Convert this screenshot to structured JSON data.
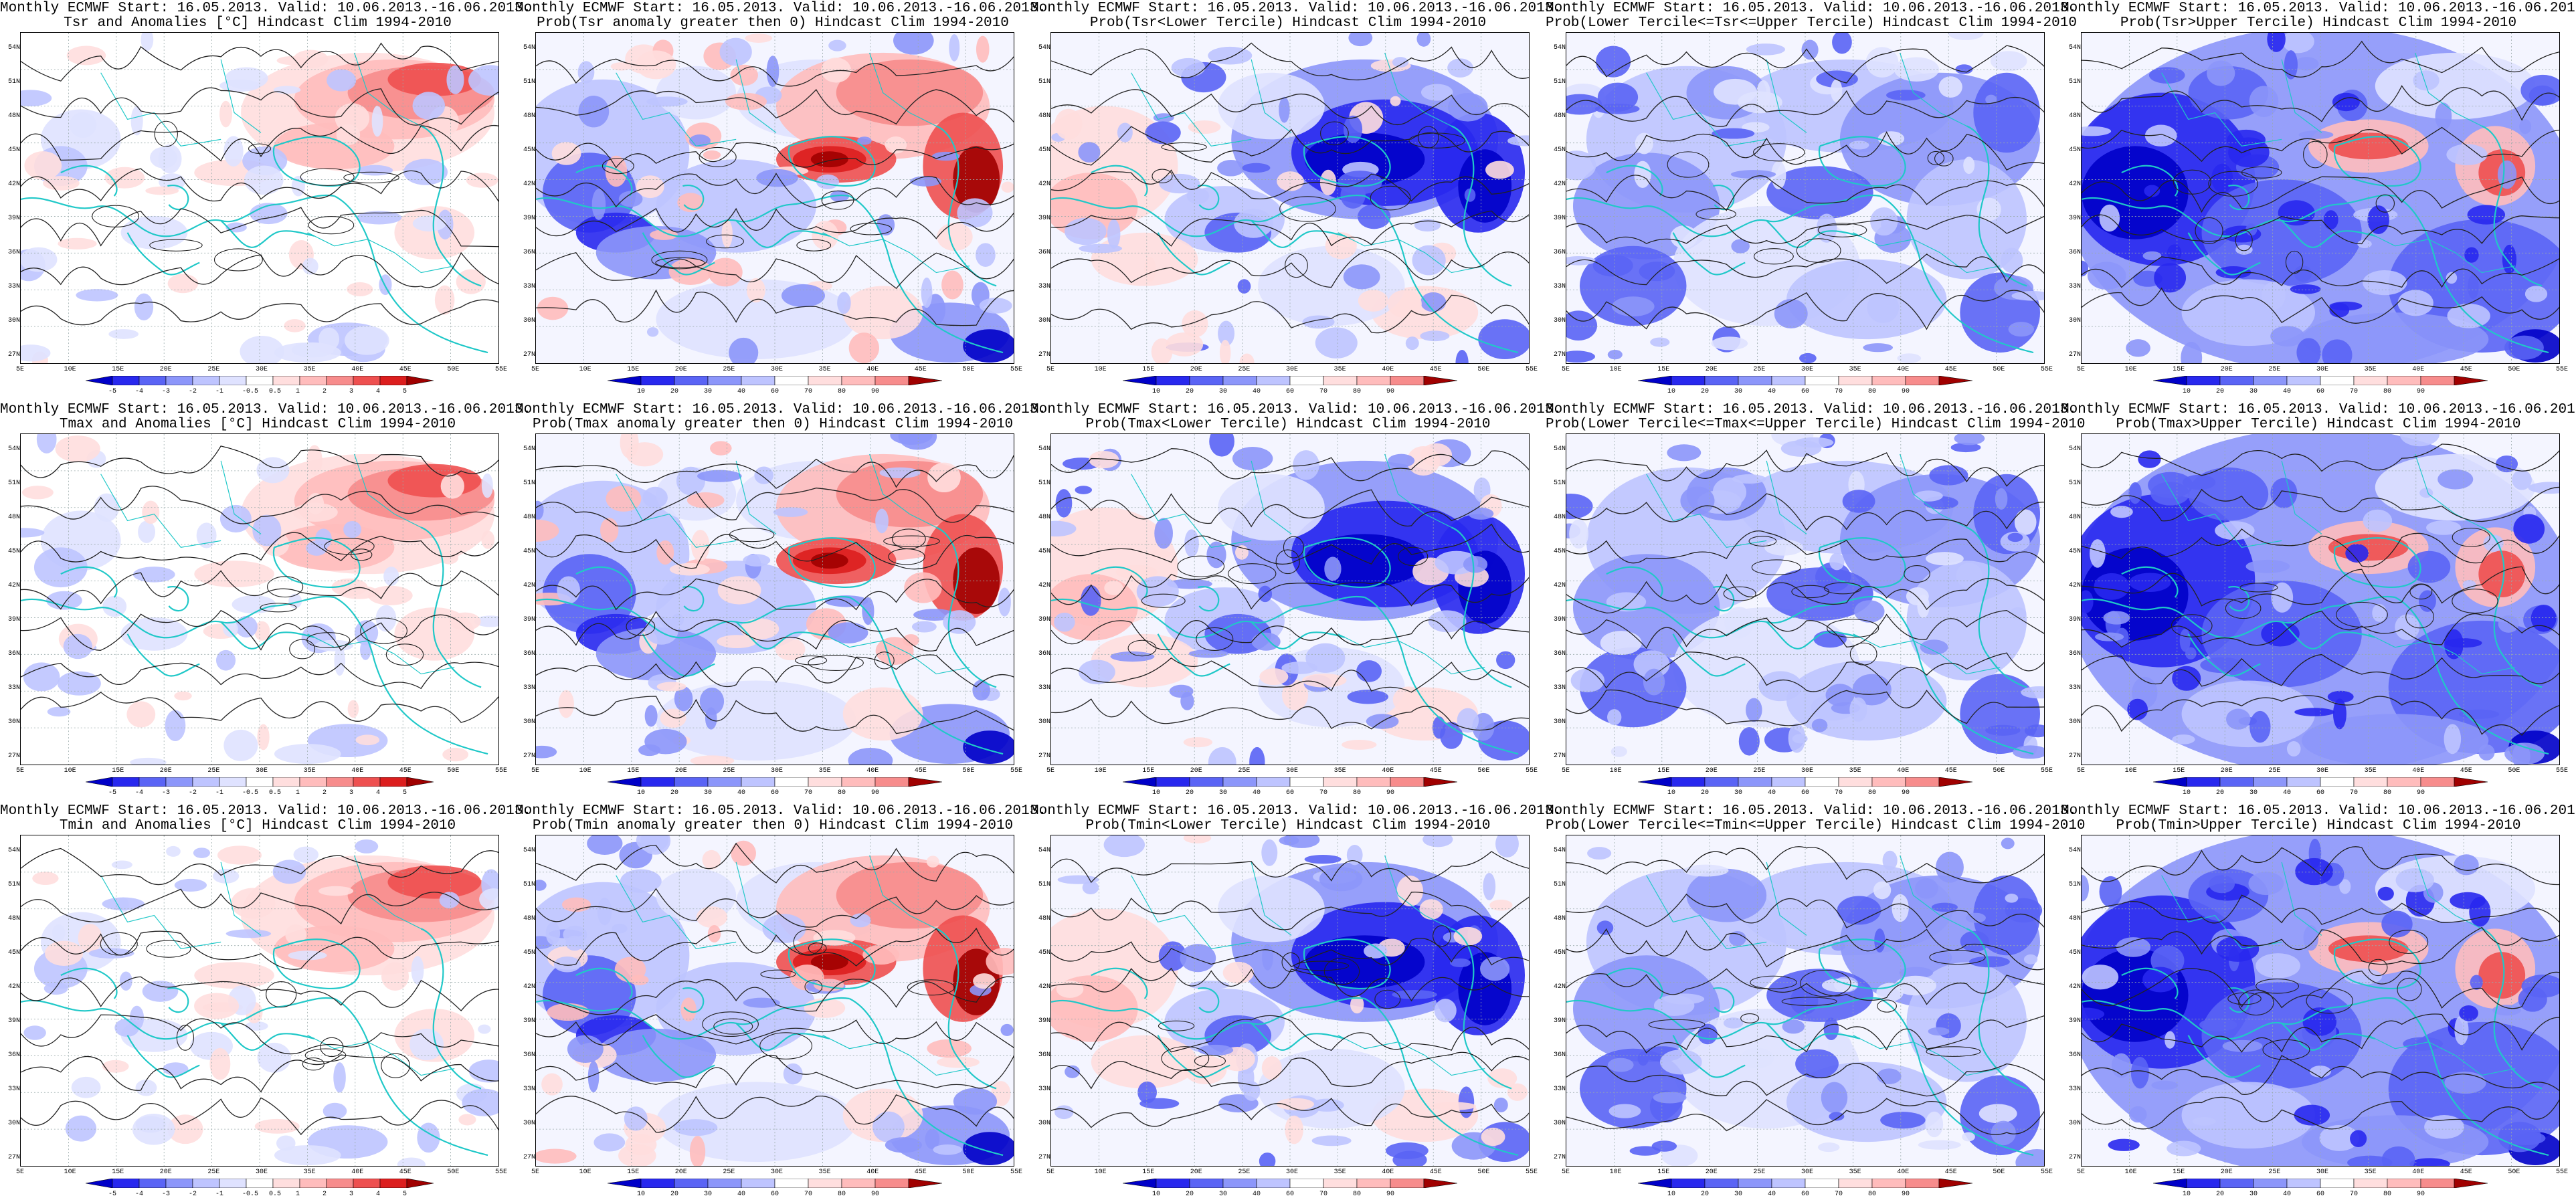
{
  "header_line": "Monthly ECMWF Start: 16.05.2013. Valid: 10.06.2013.-16.06.2013.",
  "lat_labels": [
    "54N",
    "51N",
    "48N",
    "45N",
    "42N",
    "39N",
    "36N",
    "33N",
    "30N",
    "27N"
  ],
  "lon_labels": [
    "5E",
    "10E",
    "15E",
    "20E",
    "25E",
    "30E",
    "35E",
    "40E",
    "45E",
    "50E",
    "55E"
  ],
  "colors": {
    "blues": [
      "#0000c8",
      "#2828ee",
      "#5a64f5",
      "#8c96fa",
      "#bec4ff",
      "#dfe2ff"
    ],
    "reds": [
      "#ffdede",
      "#ffbcbc",
      "#f78c8c",
      "#ee5050",
      "#dc1e1e",
      "#a00000"
    ],
    "coast": "#20c8c8",
    "contour": "#222222"
  },
  "colorbars": {
    "anomaly": [
      "-5",
      "-4",
      "-3",
      "-2",
      "-1",
      "-0.5",
      "0.5",
      "1",
      "2",
      "3",
      "4",
      "5"
    ],
    "prob": [
      "10",
      "20",
      "30",
      "40",
      "60",
      "70",
      "80",
      "90"
    ]
  },
  "rows": [
    {
      "panels": [
        {
          "title": "Tsr and Anomalies [°C] Hindcast Clim 1994-2010",
          "scale": "anomaly",
          "pattern": "anomaly"
        },
        {
          "title": "Prob(Tsr anomaly greater then 0) Hindcast Clim 1994-2010",
          "scale": "prob",
          "pattern": "pos"
        },
        {
          "title": "Prob(Tsr<Lower Tercile) Hindcast Clim 1994-2010",
          "scale": "prob",
          "pattern": "lower"
        },
        {
          "title": "Prob(Lower Tercile<=Tsr<=Upper Tercile) Hindcast Clim 1994-2010",
          "scale": "prob",
          "pattern": "middle"
        },
        {
          "title": "Prob(Tsr>Upper Tercile) Hindcast Clim 1994-2010",
          "scale": "prob",
          "pattern": "upper"
        }
      ]
    },
    {
      "panels": [
        {
          "title": "Tmax and Anomalies [°C] Hindcast Clim 1994-2010",
          "scale": "anomaly",
          "pattern": "anomaly"
        },
        {
          "title": "Prob(Tmax anomaly greater then 0) Hindcast Clim 1994-2010",
          "scale": "prob",
          "pattern": "pos"
        },
        {
          "title": "Prob(Tmax<Lower Tercile) Hindcast Clim 1994-2010",
          "scale": "prob",
          "pattern": "lower"
        },
        {
          "title": "Prob(Lower Tercile<=Tmax<=Upper Tercile) Hindcast Clim 1994-2010",
          "scale": "prob",
          "pattern": "middle"
        },
        {
          "title": "Prob(Tmax>Upper Tercile) Hindcast Clim 1994-2010",
          "scale": "prob",
          "pattern": "upper"
        }
      ]
    },
    {
      "panels": [
        {
          "title": "Tmin and Anomalies [°C] Hindcast Clim 1994-2010",
          "scale": "anomaly",
          "pattern": "anomaly"
        },
        {
          "title": "Prob(Tmin anomaly greater then 0) Hindcast Clim 1994-2010",
          "scale": "prob",
          "pattern": "pos"
        },
        {
          "title": "Prob(Tmin<Lower Tercile) Hindcast Clim 1994-2010",
          "scale": "prob",
          "pattern": "lower"
        },
        {
          "title": "Prob(Lower Tercile<=Tmin<=Upper Tercile) Hindcast Clim 1994-2010",
          "scale": "prob",
          "pattern": "middle"
        },
        {
          "title": "Prob(Tmin>Upper Tercile) Hindcast Clim 1994-2010",
          "scale": "prob",
          "pattern": "upper"
        }
      ]
    }
  ]
}
